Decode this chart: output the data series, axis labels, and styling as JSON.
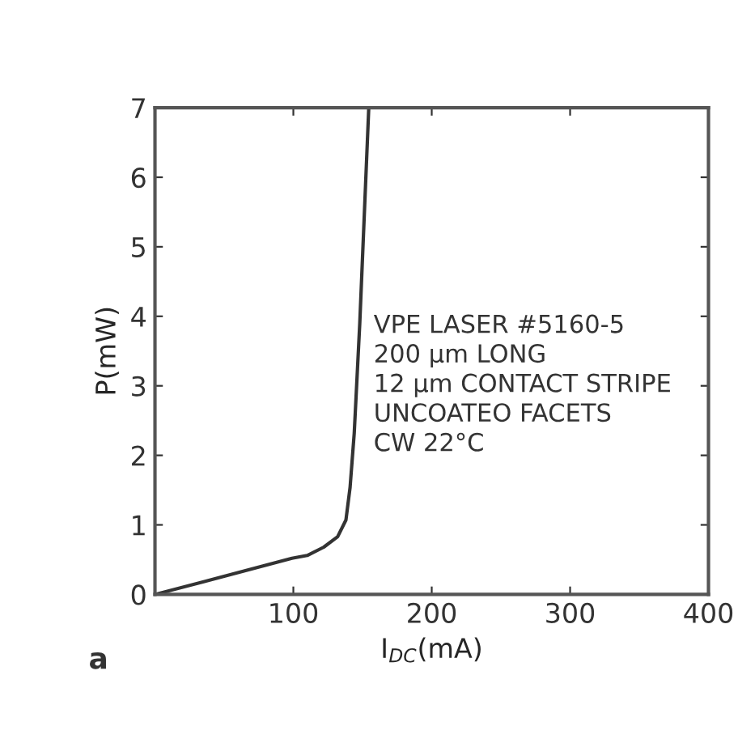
{
  "chart_data": {
    "type": "line",
    "xlabel": "I$_{DC}$(mA)",
    "ylabel": "P(mW)",
    "x": [
      0,
      50,
      99,
      110,
      122,
      132,
      138,
      141,
      144,
      148,
      154.5
    ],
    "series": [
      {
        "color": "#333333",
        "values": [
          0,
          0.26,
          0.52,
          0.56,
          0.68,
          0.83,
          1.07,
          1.54,
          2.32,
          3.9,
          7
        ]
      }
    ],
    "xlim": [
      0,
      400
    ],
    "ylim": [
      0,
      7
    ],
    "xticks": [
      100,
      200,
      300,
      400
    ],
    "yticks": [
      0,
      1,
      2,
      3,
      4,
      5,
      6,
      7
    ],
    "grid": false,
    "marker": "none",
    "line_style": "solid",
    "annotations": [
      "VPE LASER #5160-5\n200 µm LONG\n12 µm CONTACT STRIPE\nUNCOATEO FACETS\nCW 22°C",
      "a"
    ]
  }
}
